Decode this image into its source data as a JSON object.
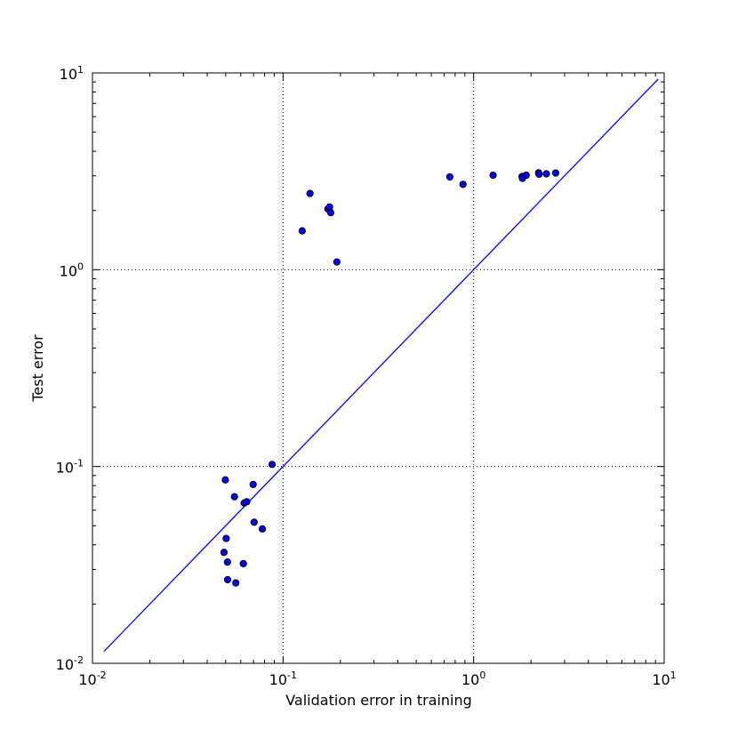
{
  "chart_data": {
    "type": "scatter",
    "title": "",
    "xlabel": "Validation error in training",
    "ylabel": "Test error",
    "xscale": "log",
    "yscale": "log",
    "xlim": [
      0.01,
      10
    ],
    "ylim": [
      0.01,
      10
    ],
    "grid": true,
    "x_ticks": [
      {
        "value": 0.01,
        "base": "10",
        "exp": "-2"
      },
      {
        "value": 0.1,
        "base": "10",
        "exp": "-1"
      },
      {
        "value": 1,
        "base": "10",
        "exp": "0"
      },
      {
        "value": 10,
        "base": "10",
        "exp": "1"
      }
    ],
    "y_ticks": [
      {
        "value": 0.01,
        "base": "10",
        "exp": "-2"
      },
      {
        "value": 0.1,
        "base": "10",
        "exp": "-1"
      },
      {
        "value": 1,
        "base": "10",
        "exp": "0"
      },
      {
        "value": 10,
        "base": "10",
        "exp": "1"
      }
    ],
    "line": {
      "x": [
        0.0115,
        9.3
      ],
      "y": [
        0.0115,
        9.3
      ],
      "color": "#0000ff"
    },
    "marker_color": "#0000ff",
    "points": [
      {
        "x": 0.0498,
        "y": 0.0855
      },
      {
        "x": 0.0556,
        "y": 0.0702
      },
      {
        "x": 0.0625,
        "y": 0.0652
      },
      {
        "x": 0.0645,
        "y": 0.0662
      },
      {
        "x": 0.0697,
        "y": 0.0811
      },
      {
        "x": 0.0876,
        "y": 0.1025
      },
      {
        "x": 0.0503,
        "y": 0.0431
      },
      {
        "x": 0.049,
        "y": 0.0366
      },
      {
        "x": 0.0511,
        "y": 0.0327
      },
      {
        "x": 0.0619,
        "y": 0.0321
      },
      {
        "x": 0.0705,
        "y": 0.0521
      },
      {
        "x": 0.0779,
        "y": 0.0482
      },
      {
        "x": 0.0512,
        "y": 0.0266
      },
      {
        "x": 0.0565,
        "y": 0.0256
      },
      {
        "x": 0.126,
        "y": 1.576
      },
      {
        "x": 0.1385,
        "y": 2.441
      },
      {
        "x": 0.1719,
        "y": 2.035
      },
      {
        "x": 0.1754,
        "y": 2.082
      },
      {
        "x": 0.178,
        "y": 1.95
      },
      {
        "x": 0.1916,
        "y": 1.095
      },
      {
        "x": 0.7502,
        "y": 2.962
      },
      {
        "x": 0.8793,
        "y": 2.715
      },
      {
        "x": 1.265,
        "y": 3.021
      },
      {
        "x": 1.795,
        "y": 2.976
      },
      {
        "x": 1.804,
        "y": 2.913
      },
      {
        "x": 1.888,
        "y": 3.021
      },
      {
        "x": 2.193,
        "y": 3.108
      },
      {
        "x": 2.205,
        "y": 3.056
      },
      {
        "x": 2.409,
        "y": 3.07
      },
      {
        "x": 2.695,
        "y": 3.101
      }
    ]
  }
}
